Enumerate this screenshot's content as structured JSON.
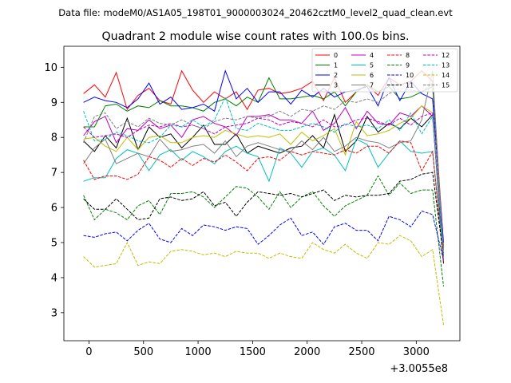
{
  "chart_data": {
    "type": "line",
    "suptitle": "Data file: modeM0/AS1A05_198T01_9000003024_20462cztM0_level2_quad_clean.evt",
    "title": "Quadrant 2 module wise count rates with 100.0s bins.",
    "xlabel": "",
    "ylabel": "",
    "offset_label": "+3.0055e8",
    "xlim": [
      -230,
      3400
    ],
    "ylim": [
      2.2,
      10.6
    ],
    "xticks": [
      0,
      500,
      1000,
      1500,
      2000,
      2500,
      3000
    ],
    "yticks": [
      3,
      4,
      5,
      6,
      7,
      8,
      9,
      10
    ],
    "legend_position": "top-right",
    "x": [
      -50,
      50,
      150,
      250,
      350,
      450,
      550,
      650,
      750,
      850,
      950,
      1050,
      1150,
      1250,
      1350,
      1450,
      1550,
      1650,
      1750,
      1850,
      1950,
      2050,
      2150,
      2250,
      2350,
      2450,
      2550,
      2650,
      2750,
      2850,
      2950,
      3050,
      3150,
      3250
    ],
    "series": [
      {
        "name": "0",
        "color": "#ff0000",
        "dash": "solid",
        "values": [
          9.25,
          9.5,
          9.15,
          9.85,
          8.8,
          9.2,
          9.4,
          9.05,
          8.95,
          9.9,
          9.35,
          9.0,
          9.3,
          9.1,
          9.3,
          8.8,
          9.35,
          9.4,
          9.25,
          9.3,
          9.4,
          9.6,
          9.05,
          9.7,
          9.0,
          9.3,
          9.5,
          9.2,
          9.7,
          9.5,
          9.6,
          9.9,
          9.6,
          4.9
        ]
      },
      {
        "name": "1",
        "color": "#008000",
        "dash": "solid",
        "values": [
          8.3,
          8.3,
          8.9,
          8.95,
          8.75,
          8.9,
          8.85,
          9.05,
          8.9,
          8.9,
          8.85,
          8.75,
          9.0,
          9.1,
          8.9,
          9.15,
          9.0,
          9.7,
          9.1,
          9.1,
          9.15,
          9.2,
          9.1,
          9.3,
          8.9,
          9.3,
          9.5,
          9.3,
          9.45,
          9.1,
          9.15,
          9.3,
          9.45,
          4.8
        ]
      },
      {
        "name": "2",
        "color": "#0000ff",
        "dash": "solid",
        "values": [
          9.0,
          9.15,
          9.05,
          9.0,
          8.85,
          9.1,
          9.55,
          8.95,
          9.15,
          8.8,
          8.85,
          8.95,
          8.75,
          9.9,
          9.1,
          9.4,
          9.0,
          9.3,
          9.3,
          8.95,
          9.35,
          9.15,
          9.4,
          9.15,
          9.3,
          9.35,
          9.45,
          8.9,
          9.7,
          9.05,
          9.6,
          9.25,
          9.1,
          5.0
        ]
      },
      {
        "name": "3",
        "color": "#000000",
        "dash": "solid",
        "values": [
          7.9,
          7.6,
          8.05,
          7.7,
          8.55,
          7.65,
          8.3,
          8.0,
          8.1,
          7.7,
          8.0,
          8.35,
          7.8,
          7.8,
          8.1,
          7.55,
          7.75,
          7.65,
          7.55,
          7.7,
          7.75,
          8.05,
          7.7,
          8.65,
          7.6,
          7.9,
          8.6,
          8.15,
          8.4,
          8.25,
          8.55,
          8.3,
          8.65,
          4.4
        ]
      },
      {
        "name": "4",
        "color": "#bf00bf",
        "dash": "solid",
        "values": [
          8.05,
          8.45,
          8.6,
          7.85,
          8.25,
          8.2,
          8.5,
          8.25,
          8.35,
          8.0,
          8.5,
          8.6,
          8.4,
          8.3,
          8.05,
          8.6,
          8.6,
          8.65,
          8.5,
          8.5,
          8.4,
          8.75,
          8.2,
          8.4,
          8.85,
          8.25,
          8.75,
          8.4,
          8.35,
          8.7,
          8.6,
          8.9,
          8.6,
          4.6
        ]
      },
      {
        "name": "5",
        "color": "#00bfbf",
        "dash": "solid",
        "values": [
          6.75,
          6.85,
          6.85,
          7.4,
          7.65,
          7.55,
          7.05,
          7.5,
          7.65,
          7.35,
          7.6,
          7.45,
          7.25,
          7.6,
          7.75,
          7.55,
          7.45,
          6.75,
          7.7,
          7.55,
          7.15,
          7.6,
          7.7,
          7.5,
          7.05,
          7.95,
          7.8,
          7.15,
          7.55,
          7.9,
          7.6,
          7.55,
          7.6,
          4.6
        ]
      },
      {
        "name": "6",
        "color": "#bfbf00",
        "dash": "solid",
        "values": [
          7.95,
          8.0,
          7.75,
          7.6,
          8.0,
          7.65,
          8.0,
          8.05,
          7.85,
          7.85,
          8.0,
          8.05,
          8.0,
          8.2,
          8.1,
          8.0,
          8.05,
          8.0,
          8.1,
          7.8,
          8.15,
          7.9,
          8.05,
          8.25,
          7.5,
          8.45,
          8.05,
          8.1,
          8.2,
          8.4,
          8.55,
          8.9,
          8.7,
          4.8
        ]
      },
      {
        "name": "7",
        "color": "#808080",
        "dash": "solid",
        "values": [
          7.25,
          7.7,
          7.95,
          7.25,
          7.4,
          7.55,
          7.45,
          7.95,
          7.6,
          7.65,
          7.75,
          7.8,
          7.55,
          7.9,
          7.45,
          7.75,
          7.85,
          7.75,
          7.65,
          7.6,
          7.9,
          7.65,
          8.0,
          7.6,
          7.75,
          8.0,
          7.9,
          7.85,
          7.7,
          7.85,
          7.9,
          8.5,
          9.9,
          4.6
        ]
      },
      {
        "name": "8",
        "color": "#ff0000",
        "dash": "dashed",
        "values": [
          7.35,
          6.8,
          6.9,
          6.9,
          6.8,
          6.95,
          7.45,
          7.35,
          7.15,
          7.4,
          7.2,
          7.4,
          7.3,
          7.5,
          7.3,
          7.05,
          7.4,
          7.45,
          7.35,
          7.6,
          7.5,
          7.6,
          7.55,
          7.5,
          7.65,
          7.55,
          7.75,
          7.75,
          7.55,
          7.9,
          7.85,
          7.05,
          7.6,
          4.4
        ]
      },
      {
        "name": "9",
        "color": "#008000",
        "dash": "dashed",
        "values": [
          6.35,
          5.65,
          5.95,
          5.85,
          5.65,
          6.05,
          6.2,
          5.8,
          6.4,
          6.4,
          6.45,
          6.3,
          6.0,
          6.3,
          6.6,
          6.55,
          6.3,
          5.95,
          6.45,
          6.0,
          6.3,
          6.45,
          6.05,
          5.75,
          6.05,
          6.2,
          6.35,
          6.9,
          6.35,
          6.7,
          6.4,
          6.5,
          6.5,
          3.75
        ]
      },
      {
        "name": "10",
        "color": "#0000ff",
        "dash": "dashed",
        "values": [
          5.2,
          5.15,
          5.25,
          5.3,
          5.05,
          5.35,
          5.55,
          5.1,
          5.0,
          5.4,
          5.2,
          5.5,
          5.45,
          5.35,
          5.45,
          5.4,
          4.95,
          5.2,
          5.5,
          5.7,
          5.2,
          5.3,
          4.95,
          5.45,
          5.55,
          5.35,
          5.35,
          5.05,
          5.75,
          5.65,
          5.45,
          5.9,
          5.8,
          4.5
        ]
      },
      {
        "name": "11",
        "color": "#000000",
        "dash": "dashed",
        "values": [
          6.25,
          5.95,
          5.95,
          6.25,
          5.95,
          5.65,
          5.7,
          6.25,
          6.3,
          6.2,
          6.25,
          6.45,
          6.05,
          6.15,
          5.75,
          6.15,
          6.45,
          6.4,
          6.35,
          6.4,
          6.3,
          6.4,
          6.5,
          6.2,
          6.35,
          6.3,
          6.35,
          6.35,
          6.4,
          6.75,
          6.8,
          6.95,
          7.0,
          4.6
        ]
      },
      {
        "name": "12",
        "color": "#bf00bf",
        "dash": "dashed",
        "values": [
          8.3,
          8.0,
          8.05,
          8.1,
          8.0,
          8.2,
          8.35,
          8.3,
          8.4,
          8.3,
          8.35,
          8.25,
          8.1,
          8.3,
          8.35,
          8.4,
          8.55,
          8.5,
          8.35,
          8.45,
          8.4,
          8.3,
          8.5,
          8.3,
          8.35,
          8.5,
          8.55,
          8.45,
          8.35,
          8.55,
          8.35,
          8.6,
          8.7,
          4.7
        ]
      },
      {
        "name": "13",
        "color": "#00bfbf",
        "dash": "dashed",
        "values": [
          8.75,
          7.9,
          7.95,
          8.15,
          8.05,
          7.9,
          7.85,
          8.0,
          8.35,
          8.3,
          8.5,
          8.3,
          8.5,
          9.15,
          8.25,
          8.2,
          8.4,
          8.3,
          8.2,
          8.2,
          8.3,
          8.4,
          8.3,
          8.15,
          8.4,
          8.3,
          8.35,
          8.25,
          8.5,
          8.2,
          8.7,
          8.1,
          8.6,
          4.6
        ]
      },
      {
        "name": "14",
        "color": "#bfbf00",
        "dash": "dashed",
        "values": [
          4.6,
          4.3,
          4.35,
          4.4,
          5.0,
          4.35,
          4.45,
          4.4,
          4.75,
          4.8,
          4.75,
          4.65,
          4.7,
          4.6,
          4.75,
          4.7,
          4.7,
          4.55,
          4.7,
          4.6,
          4.55,
          5.0,
          4.8,
          4.7,
          4.95,
          4.7,
          4.55,
          5.0,
          4.95,
          5.2,
          5.05,
          4.6,
          4.8,
          2.65
        ]
      },
      {
        "name": "15",
        "color": "#808080",
        "dash": "dashed",
        "values": [
          7.85,
          8.6,
          8.7,
          8.25,
          8.45,
          8.3,
          8.55,
          8.4,
          8.35,
          8.5,
          8.35,
          8.25,
          8.45,
          8.55,
          8.5,
          8.6,
          8.55,
          8.6,
          8.75,
          8.6,
          8.8,
          8.75,
          8.9,
          8.8,
          9.05,
          9.0,
          9.1,
          9.0,
          9.25,
          9.4,
          9.35,
          9.3,
          9.55,
          4.6
        ]
      }
    ]
  }
}
